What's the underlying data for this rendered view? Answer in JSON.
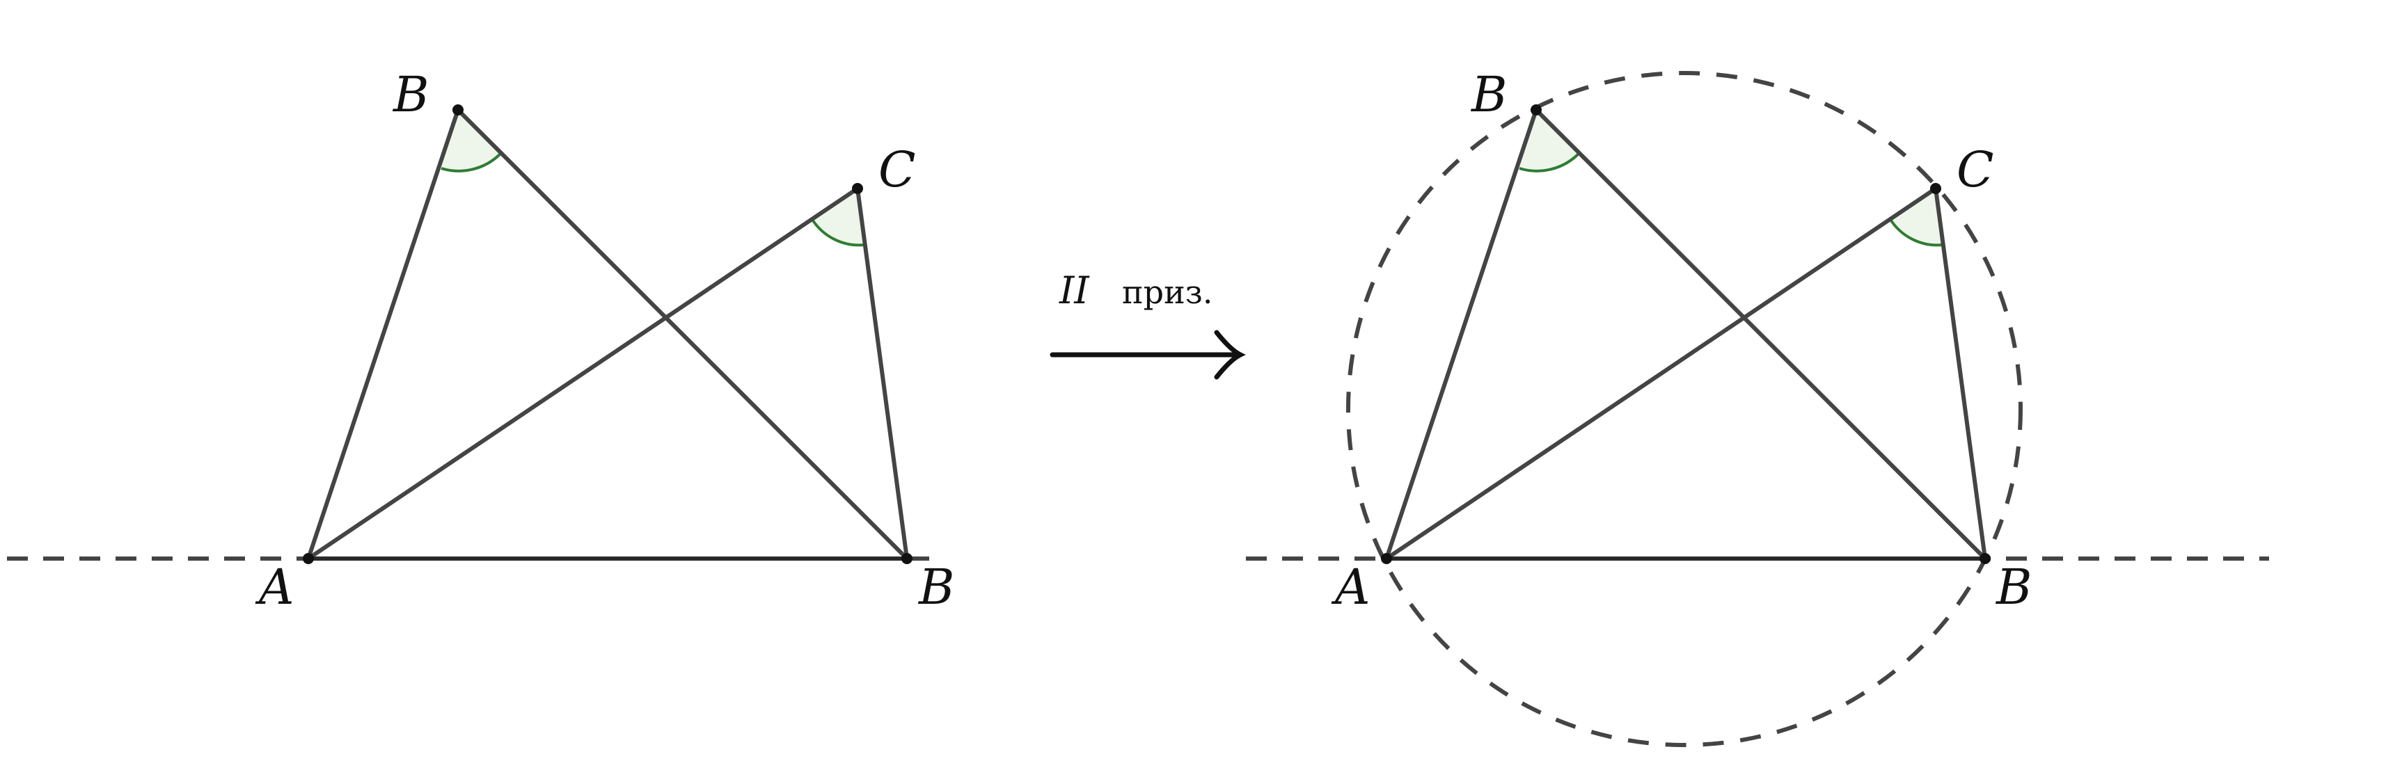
{
  "figure_left": {
    "labels": {
      "A": "A",
      "B_top": "B",
      "C": "C",
      "B_bottom": "B"
    }
  },
  "figure_right": {
    "labels": {
      "A": "A",
      "B_top": "B",
      "C": "C",
      "B_bottom": "B"
    }
  },
  "transition": {
    "roman": "II",
    "text": "приз."
  }
}
